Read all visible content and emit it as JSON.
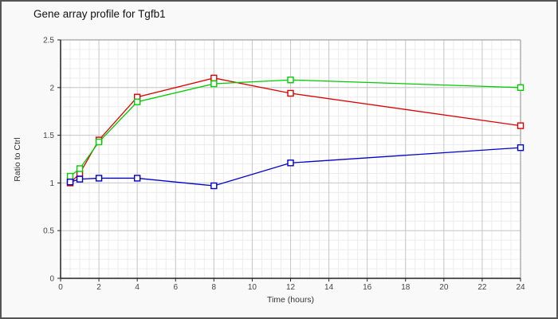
{
  "window": {
    "background": "#f9f9f9",
    "border_color": "#555555"
  },
  "chart_data": {
    "type": "line",
    "title": "Gene array profile for Tgfb1",
    "xlabel": "Time (hours)",
    "ylabel": "Ratio to Ctrl",
    "x": [
      0.5,
      1,
      2,
      4,
      8,
      12,
      24
    ],
    "series": [
      {
        "name": "red-series",
        "color": "#dd0000",
        "values": [
          1.0,
          1.1,
          1.45,
          1.9,
          2.1,
          1.94,
          1.6
        ]
      },
      {
        "name": "green-series",
        "color": "#00cc00",
        "values": [
          1.07,
          1.15,
          1.43,
          1.85,
          2.04,
          2.08,
          2.0
        ]
      },
      {
        "name": "blue-series",
        "color": "#0000cc",
        "values": [
          1.01,
          1.04,
          1.05,
          1.05,
          0.97,
          1.21,
          1.37
        ]
      }
    ],
    "xlim": [
      0,
      24
    ],
    "ylim": [
      0,
      2.5
    ],
    "x_ticks": [
      0,
      2,
      4,
      6,
      8,
      10,
      12,
      14,
      16,
      18,
      20,
      22,
      24
    ],
    "y_ticks": [
      0,
      0.5,
      1,
      1.5,
      2,
      2.5
    ],
    "x_minor_step": 0.5,
    "y_minor_step": 0.1,
    "grid": true,
    "legend": "none",
    "marker": "square-open",
    "colors": {
      "plot_bg": "#ffffff",
      "grid_minor": "#ececec",
      "grid_major": "#c8c8c8",
      "plot_frame": "#b0b0b0",
      "axis": "#222222",
      "tick_label": "#444444"
    }
  }
}
